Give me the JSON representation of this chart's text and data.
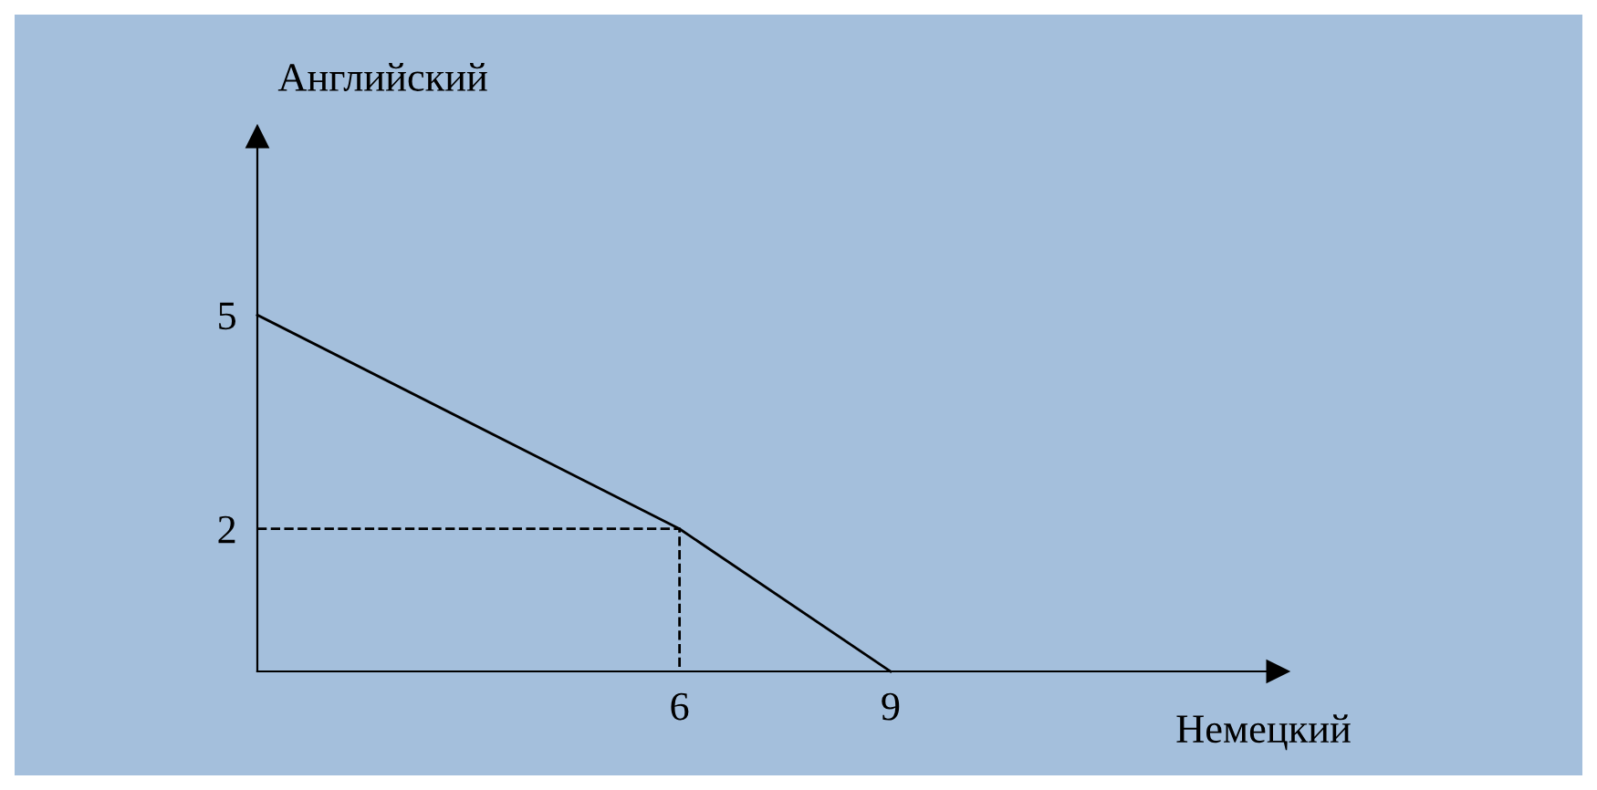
{
  "chart_data": {
    "type": "line",
    "xlabel": "Немецкий",
    "ylabel": "Английский",
    "series": [
      {
        "x": [
          0,
          6,
          9
        ],
        "values": [
          5,
          2,
          0
        ],
        "color": "#000000",
        "line_style": "solid"
      },
      {
        "x": [
          0,
          6,
          6
        ],
        "values": [
          2,
          2,
          0
        ],
        "color": "#000000",
        "line_style": "dashed"
      }
    ],
    "xlim": [
      0,
      14.5
    ],
    "ylim": [
      0,
      7.5
    ],
    "xticks": [
      6,
      9
    ],
    "yticks": [
      2,
      5
    ],
    "grid": false,
    "legend": false,
    "marker": "none"
  }
}
